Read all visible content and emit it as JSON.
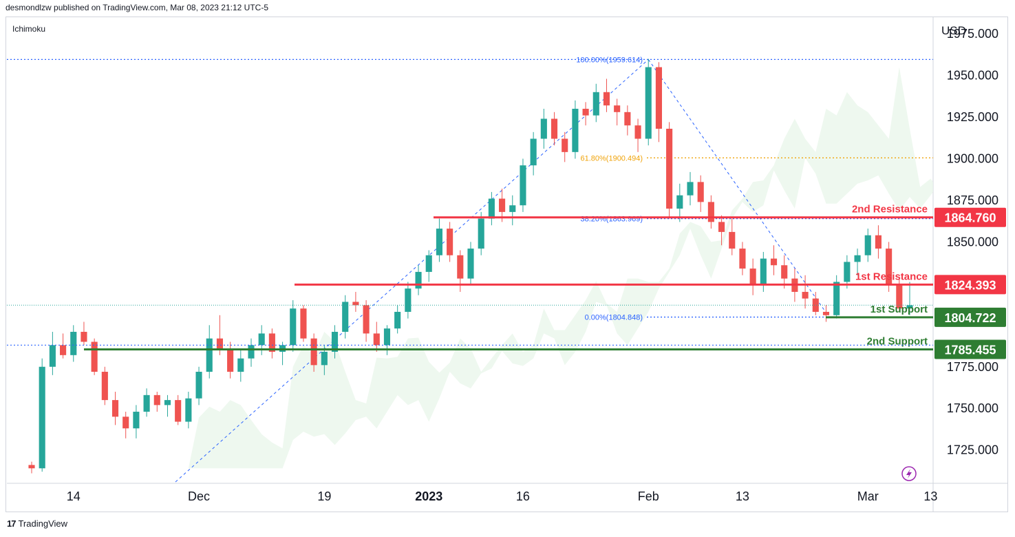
{
  "header": {
    "published": "desmondlzw published on TradingView.com, Mar 08, 2023 21:12 UTC-5"
  },
  "indicator": {
    "name": "Ichimoku"
  },
  "axis": {
    "currency": "USD"
  },
  "footer": {
    "logo": "17",
    "brand": "TradingView"
  },
  "colors": {
    "up": "#26a69a",
    "down": "#ef5350",
    "resistance": "#f23645",
    "support": "#2e7d32",
    "fib": "#2962ff",
    "fib618": "#f0a30a"
  },
  "chart_data": {
    "type": "candlestick",
    "ylim": [
      1705,
      1985
    ],
    "y_ticks": [
      "1975.000",
      "1950.000",
      "1925.000",
      "1900.000",
      "1875.000",
      "1850.000",
      "1825.000",
      "1800.000",
      "1775.000",
      "1750.000",
      "1725.000"
    ],
    "y_tick_values": [
      1975,
      1950,
      1925,
      1900,
      1875,
      1850,
      1825,
      1800,
      1775,
      1750,
      1725
    ],
    "x_ticks": [
      {
        "label": "14",
        "bold": false,
        "bar": 4
      },
      {
        "label": "Dec",
        "bold": false,
        "bar": 16
      },
      {
        "label": "19",
        "bold": false,
        "bar": 28
      },
      {
        "label": "2023",
        "bold": true,
        "bar": 38
      },
      {
        "label": "16",
        "bold": false,
        "bar": 47
      },
      {
        "label": "Feb",
        "bold": false,
        "bar": 59
      },
      {
        "label": "13",
        "bold": false,
        "bar": 68
      },
      {
        "label": "Mar",
        "bold": false,
        "bar": 80
      },
      {
        "label": "13",
        "bold": false,
        "bar": 86
      }
    ],
    "levels": [
      {
        "name": "2nd Resistance",
        "value": 1864.76,
        "label": "1864.760",
        "kind": "resistance"
      },
      {
        "name": "1st Resistance",
        "value": 1824.393,
        "label": "1824.393",
        "kind": "resistance"
      },
      {
        "name": "1st Support",
        "value": 1804.722,
        "label": "1804.722",
        "kind": "support"
      },
      {
        "name": "2nd Support",
        "value": 1785.455,
        "label": "1785.455",
        "kind": "support"
      }
    ],
    "fib": [
      {
        "label": "100.00%(1959.614)",
        "value": 1959.614
      },
      {
        "label": "61.80%(1900.494)",
        "value": 1900.494
      },
      {
        "label": "38.20%(1863.969)",
        "value": 1863.969
      },
      {
        "label": "0.00%(1804.848)",
        "value": 1804.848
      }
    ],
    "candles": [
      [
        1716,
        1718,
        1711,
        1714
      ],
      [
        1714,
        1780,
        1712,
        1775
      ],
      [
        1775,
        1796,
        1770,
        1788
      ],
      [
        1788,
        1795,
        1780,
        1782
      ],
      [
        1782,
        1800,
        1778,
        1796
      ],
      [
        1796,
        1802,
        1788,
        1790
      ],
      [
        1790,
        1792,
        1770,
        1772
      ],
      [
        1772,
        1775,
        1752,
        1755
      ],
      [
        1755,
        1760,
        1740,
        1745
      ],
      [
        1745,
        1748,
        1732,
        1738
      ],
      [
        1738,
        1752,
        1732,
        1748
      ],
      [
        1748,
        1762,
        1745,
        1758
      ],
      [
        1758,
        1760,
        1748,
        1752
      ],
      [
        1752,
        1758,
        1745,
        1755
      ],
      [
        1755,
        1758,
        1740,
        1742
      ],
      [
        1742,
        1760,
        1738,
        1756
      ],
      [
        1756,
        1775,
        1752,
        1772
      ],
      [
        1772,
        1800,
        1768,
        1792
      ],
      [
        1792,
        1806,
        1782,
        1786
      ],
      [
        1786,
        1790,
        1768,
        1772
      ],
      [
        1772,
        1785,
        1766,
        1780
      ],
      [
        1780,
        1792,
        1775,
        1788
      ],
      [
        1788,
        1800,
        1782,
        1795
      ],
      [
        1795,
        1798,
        1780,
        1784
      ],
      [
        1784,
        1790,
        1776,
        1788
      ],
      [
        1788,
        1815,
        1784,
        1810
      ],
      [
        1810,
        1812,
        1790,
        1792
      ],
      [
        1792,
        1795,
        1772,
        1776
      ],
      [
        1776,
        1788,
        1770,
        1784
      ],
      [
        1784,
        1800,
        1780,
        1796
      ],
      [
        1796,
        1818,
        1792,
        1814
      ],
      [
        1814,
        1820,
        1808,
        1812
      ],
      [
        1812,
        1815,
        1790,
        1795
      ],
      [
        1795,
        1802,
        1784,
        1788
      ],
      [
        1788,
        1800,
        1782,
        1798
      ],
      [
        1798,
        1812,
        1795,
        1808
      ],
      [
        1808,
        1826,
        1804,
        1822
      ],
      [
        1822,
        1836,
        1818,
        1832
      ],
      [
        1832,
        1845,
        1826,
        1842
      ],
      [
        1842,
        1864,
        1838,
        1858
      ],
      [
        1858,
        1862,
        1838,
        1842
      ],
      [
        1842,
        1845,
        1820,
        1828
      ],
      [
        1828,
        1850,
        1824,
        1846
      ],
      [
        1846,
        1868,
        1842,
        1864
      ],
      [
        1864,
        1880,
        1860,
        1876
      ],
      [
        1876,
        1882,
        1862,
        1868
      ],
      [
        1868,
        1878,
        1860,
        1872
      ],
      [
        1872,
        1900,
        1868,
        1896
      ],
      [
        1896,
        1916,
        1890,
        1912
      ],
      [
        1912,
        1930,
        1906,
        1924
      ],
      [
        1924,
        1928,
        1908,
        1912
      ],
      [
        1912,
        1916,
        1898,
        1904
      ],
      [
        1904,
        1935,
        1900,
        1930
      ],
      [
        1930,
        1934,
        1920,
        1926
      ],
      [
        1926,
        1945,
        1922,
        1940
      ],
      [
        1940,
        1948,
        1928,
        1932
      ],
      [
        1932,
        1936,
        1920,
        1928
      ],
      [
        1928,
        1932,
        1914,
        1920
      ],
      [
        1920,
        1924,
        1904,
        1912
      ],
      [
        1912,
        1960,
        1908,
        1955
      ],
      [
        1955,
        1958,
        1910,
        1918
      ],
      [
        1918,
        1922,
        1864,
        1870
      ],
      [
        1870,
        1885,
        1862,
        1878
      ],
      [
        1878,
        1892,
        1872,
        1886
      ],
      [
        1886,
        1890,
        1868,
        1874
      ],
      [
        1874,
        1878,
        1858,
        1862
      ],
      [
        1862,
        1866,
        1848,
        1856
      ],
      [
        1856,
        1864,
        1842,
        1846
      ],
      [
        1846,
        1850,
        1830,
        1834
      ],
      [
        1834,
        1840,
        1818,
        1824
      ],
      [
        1824,
        1844,
        1820,
        1840
      ],
      [
        1840,
        1848,
        1830,
        1836
      ],
      [
        1836,
        1842,
        1822,
        1828
      ],
      [
        1828,
        1834,
        1814,
        1820
      ],
      [
        1820,
        1830,
        1810,
        1816
      ],
      [
        1816,
        1820,
        1806,
        1808
      ],
      [
        1808,
        1812,
        1802,
        1806
      ],
      [
        1806,
        1830,
        1804,
        1826
      ],
      [
        1826,
        1842,
        1822,
        1838
      ],
      [
        1838,
        1846,
        1830,
        1842
      ],
      [
        1842,
        1858,
        1838,
        1854
      ],
      [
        1854,
        1860,
        1840,
        1846
      ],
      [
        1846,
        1850,
        1820,
        1824
      ],
      [
        1824,
        1828,
        1808,
        1810
      ],
      [
        1810,
        1826,
        1806,
        1812
      ]
    ]
  }
}
